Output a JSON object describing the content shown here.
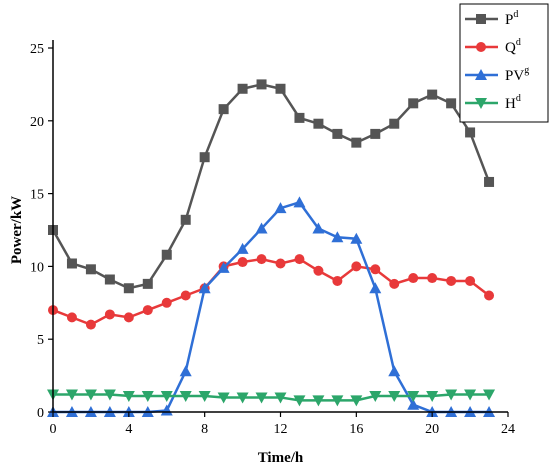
{
  "chart_data": {
    "type": "line",
    "title": "",
    "xlabel": "Time/h",
    "ylabel": "Power/kW",
    "xlim": [
      0,
      24
    ],
    "ylim": [
      0,
      25
    ],
    "xticks": [
      0,
      4,
      8,
      12,
      16,
      20,
      24
    ],
    "yticks": [
      0,
      5,
      10,
      15,
      20,
      25
    ],
    "x": [
      0,
      1,
      2,
      3,
      4,
      5,
      6,
      7,
      8,
      9,
      10,
      11,
      12,
      13,
      14,
      15,
      16,
      17,
      18,
      19,
      20,
      21,
      22,
      23
    ],
    "grid": false,
    "legend": "top-right",
    "series": [
      {
        "name": "P",
        "sup": "d",
        "color": "#555555",
        "marker": "square",
        "values": [
          12.5,
          10.2,
          9.8,
          9.1,
          8.5,
          8.8,
          10.8,
          13.2,
          17.5,
          20.8,
          22.2,
          22.5,
          22.2,
          20.2,
          19.8,
          19.1,
          18.5,
          19.1,
          19.8,
          21.2,
          21.8,
          21.2,
          19.2,
          15.8
        ]
      },
      {
        "name": "Q",
        "sup": "d",
        "color": "#e8393a",
        "marker": "circle",
        "values": [
          7.0,
          6.5,
          6.0,
          6.7,
          6.5,
          7.0,
          7.5,
          8.0,
          8.5,
          10.0,
          10.3,
          10.5,
          10.2,
          10.5,
          9.7,
          9.0,
          10.0,
          9.8,
          8.8,
          9.2,
          9.2,
          9.0,
          9.0,
          8.0
        ]
      },
      {
        "name": "PV",
        "sup": "g",
        "color": "#2f6fd6",
        "marker": "triangle-up",
        "values": [
          0,
          0,
          0,
          0,
          0,
          0,
          0.1,
          2.8,
          8.5,
          9.9,
          11.2,
          12.6,
          14.0,
          14.4,
          12.6,
          12.0,
          11.9,
          8.5,
          2.8,
          0.5,
          0,
          0,
          0,
          0
        ]
      },
      {
        "name": "H",
        "sup": "d",
        "color": "#2ca66a",
        "marker": "triangle-down",
        "values": [
          1.2,
          1.2,
          1.2,
          1.2,
          1.1,
          1.1,
          1.1,
          1.1,
          1.1,
          1.0,
          1.0,
          1.0,
          1.0,
          0.8,
          0.8,
          0.8,
          0.8,
          1.1,
          1.1,
          1.1,
          1.1,
          1.2,
          1.2,
          1.2
        ]
      }
    ]
  }
}
